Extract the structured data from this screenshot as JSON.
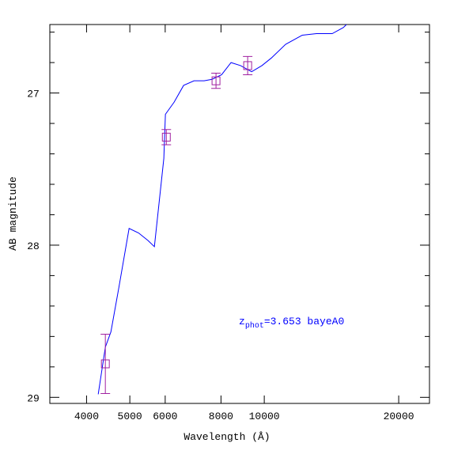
{
  "chart_data": {
    "type": "line",
    "xlabel": "Wavelength (Å)",
    "ylabel": "AB magnitude",
    "annotation": {
      "main": "z",
      "sub": "phot",
      "rest": "=3.653 bayeA0",
      "color": "#0000ff"
    },
    "xscale": "log",
    "xlim": [
      3310,
      23440
    ],
    "xticks": [
      4000,
      5000,
      6000,
      8000,
      10000,
      20000
    ],
    "ylim": [
      26.55,
      29.04
    ],
    "yreversed": true,
    "yticks": [
      27,
      28,
      29
    ],
    "yminorticks": [
      26.6,
      26.8,
      27.2,
      27.4,
      27.6,
      27.8,
      28.2,
      28.4,
      28.6,
      28.8
    ],
    "model": {
      "color": "#0000ff",
      "x": [
        4248,
        4407,
        4535,
        4724,
        4981,
        5231,
        5493,
        5675,
        5958,
        6007,
        6283,
        6598,
        6961,
        7335,
        7641,
        8025,
        8426,
        8849,
        9369,
        9879,
        10373,
        11164,
        12162,
        13088,
        14196,
        15032,
        15280
      ],
      "values": [
        28.98,
        28.67,
        28.57,
        28.28,
        27.89,
        27.92,
        27.97,
        28.01,
        27.43,
        27.14,
        27.06,
        26.95,
        26.92,
        26.92,
        26.91,
        26.88,
        26.8,
        26.82,
        26.86,
        26.82,
        26.77,
        26.68,
        26.62,
        26.61,
        26.61,
        26.57,
        26.55
      ]
    },
    "photometry": {
      "color": "#a020a0",
      "x": [
        4407,
        6035,
        7797,
        9180
      ],
      "values": [
        28.78,
        27.29,
        26.92,
        26.82
      ],
      "errors": [
        0.195,
        0.05,
        0.05,
        0.06
      ]
    }
  }
}
